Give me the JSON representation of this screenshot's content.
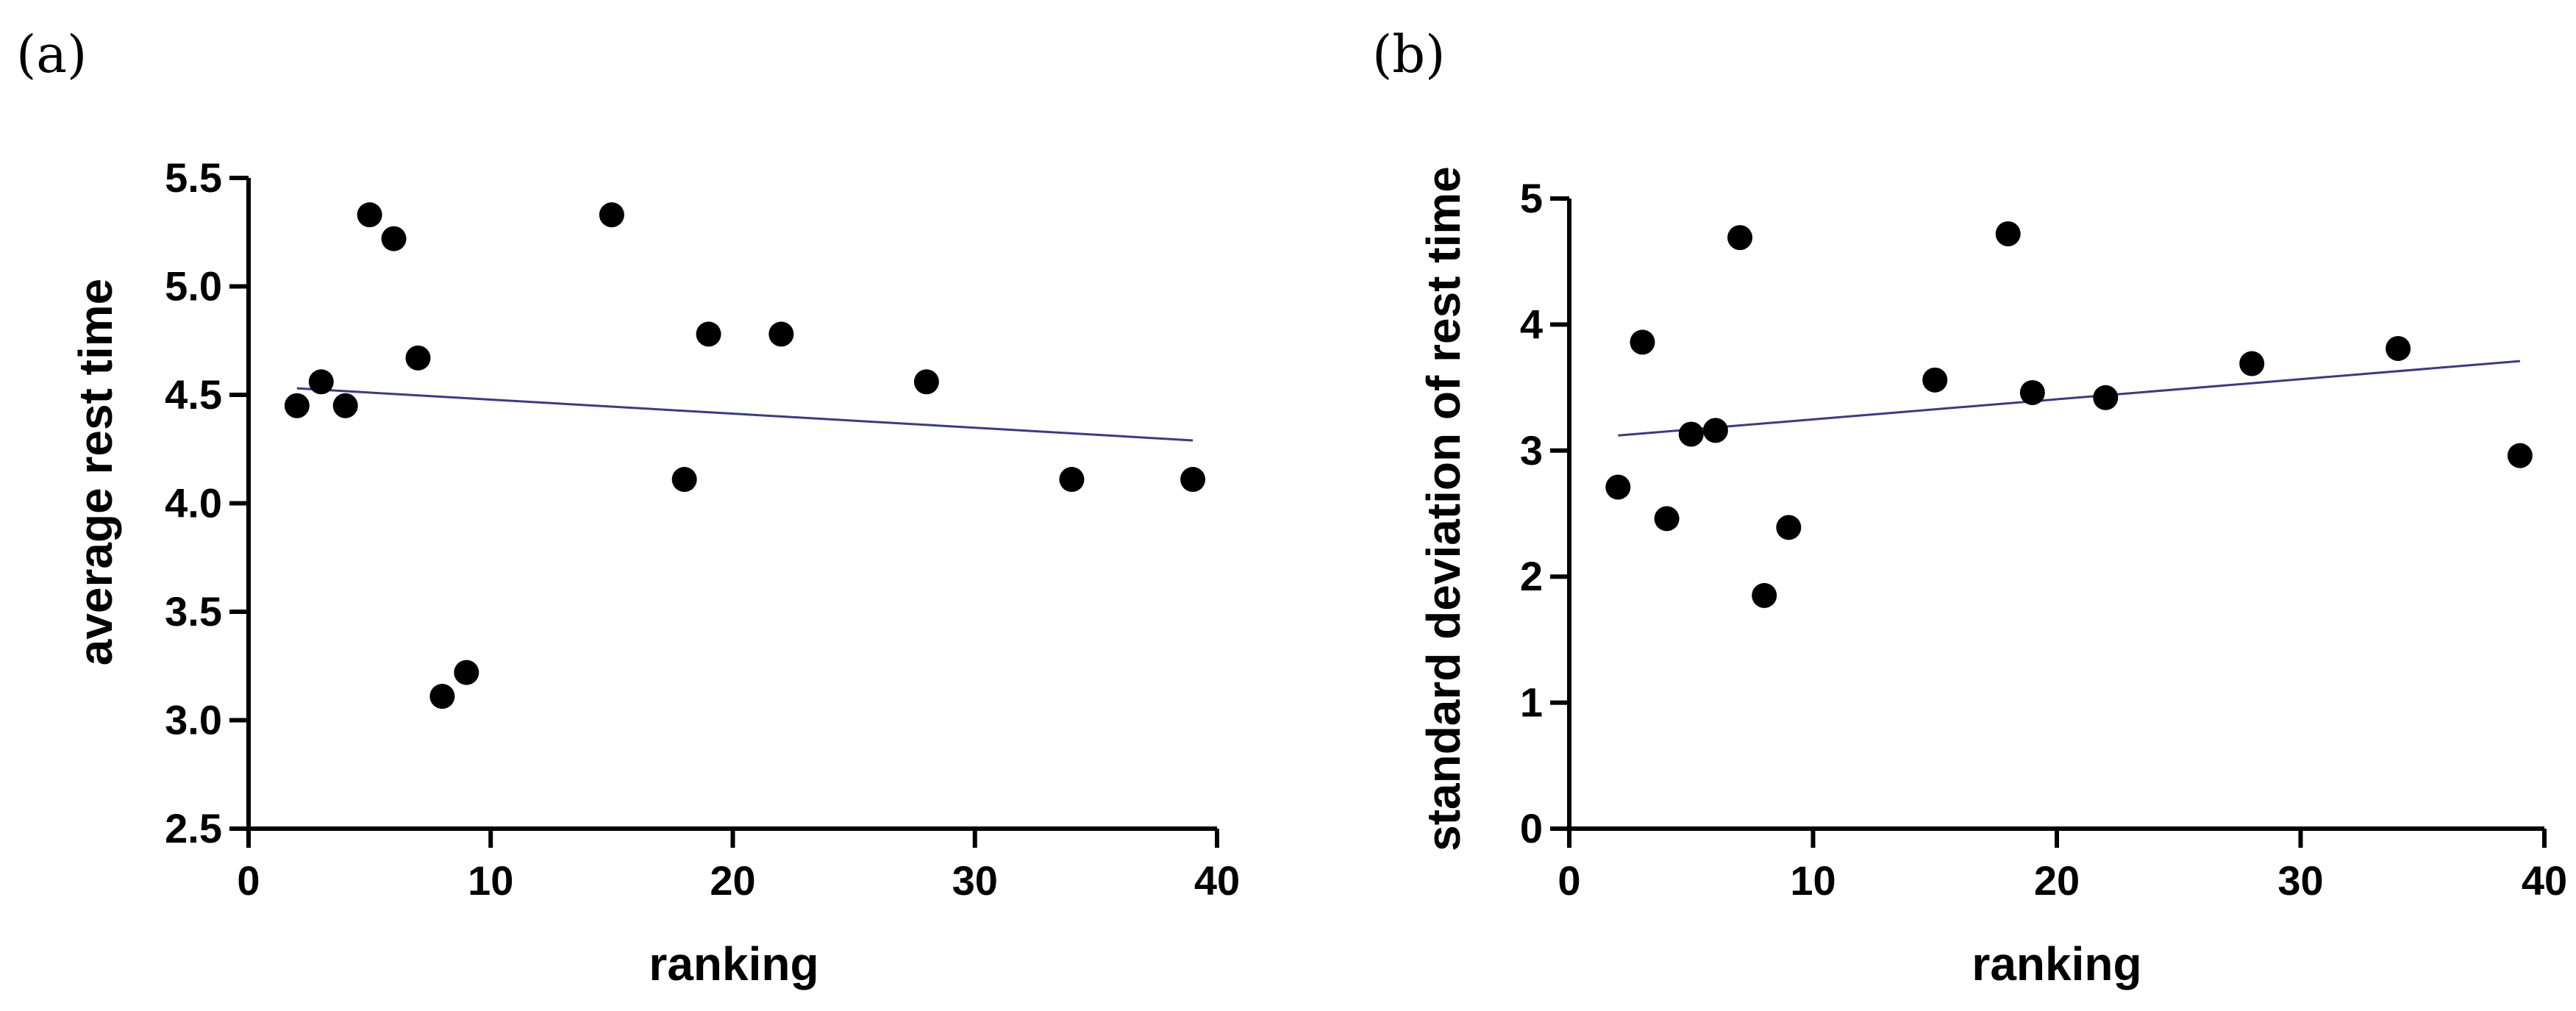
{
  "chart_data": [
    {
      "panel_label": "(a)",
      "type": "scatter",
      "xlabel": "ranking",
      "ylabel": "average rest time",
      "xlim": [
        0,
        40
      ],
      "ylim": [
        2.5,
        5.5
      ],
      "xticks": [
        0,
        10,
        20,
        30,
        40
      ],
      "yticks": [
        2.5,
        3.0,
        3.5,
        4.0,
        4.5,
        5.0,
        5.5
      ],
      "xtick_labels": [
        "0",
        "10",
        "20",
        "30",
        "40"
      ],
      "ytick_labels": [
        "2.5",
        "3.0",
        "3.5",
        "4.0",
        "4.5",
        "5.0",
        "5.5"
      ],
      "points": [
        {
          "x": 2,
          "y": 4.45
        },
        {
          "x": 3,
          "y": 4.56
        },
        {
          "x": 4,
          "y": 4.45
        },
        {
          "x": 5,
          "y": 5.33
        },
        {
          "x": 6,
          "y": 5.22
        },
        {
          "x": 7,
          "y": 4.67
        },
        {
          "x": 8,
          "y": 3.11
        },
        {
          "x": 9,
          "y": 3.22
        },
        {
          "x": 15,
          "y": 5.33
        },
        {
          "x": 18,
          "y": 4.11
        },
        {
          "x": 19,
          "y": 4.78
        },
        {
          "x": 22,
          "y": 4.78
        },
        {
          "x": 28,
          "y": 4.56
        },
        {
          "x": 34,
          "y": 4.11
        },
        {
          "x": 39,
          "y": 4.11
        }
      ],
      "trendline": {
        "x": [
          2,
          39
        ],
        "y": [
          4.53,
          4.29
        ]
      },
      "marker_color": "#000000",
      "trend_color": "#3a3a8c"
    },
    {
      "panel_label": "(b)",
      "type": "scatter",
      "xlabel": "ranking",
      "ylabel": "standard deviation of rest time",
      "xlim": [
        0,
        40
      ],
      "ylim": [
        0,
        5
      ],
      "xticks": [
        0,
        10,
        20,
        30,
        40
      ],
      "yticks": [
        0,
        1,
        2,
        3,
        4,
        5
      ],
      "xtick_labels": [
        "0",
        "10",
        "20",
        "30",
        "40"
      ],
      "ytick_labels": [
        "0",
        "1",
        "2",
        "3",
        "4",
        "5"
      ],
      "points": [
        {
          "x": 2,
          "y": 2.71
        },
        {
          "x": 3,
          "y": 3.86
        },
        {
          "x": 4,
          "y": 2.46
        },
        {
          "x": 5,
          "y": 3.13
        },
        {
          "x": 6,
          "y": 3.16
        },
        {
          "x": 7,
          "y": 4.69
        },
        {
          "x": 8,
          "y": 1.85
        },
        {
          "x": 9,
          "y": 2.39
        },
        {
          "x": 15,
          "y": 3.56
        },
        {
          "x": 18,
          "y": 4.72
        },
        {
          "x": 19,
          "y": 3.46
        },
        {
          "x": 22,
          "y": 3.42
        },
        {
          "x": 28,
          "y": 3.69
        },
        {
          "x": 34,
          "y": 3.81
        },
        {
          "x": 39,
          "y": 2.96
        }
      ],
      "trendline": {
        "x": [
          2,
          39
        ],
        "y": [
          3.12,
          3.71
        ]
      },
      "marker_color": "#000000",
      "trend_color": "#3a3a8c"
    }
  ]
}
